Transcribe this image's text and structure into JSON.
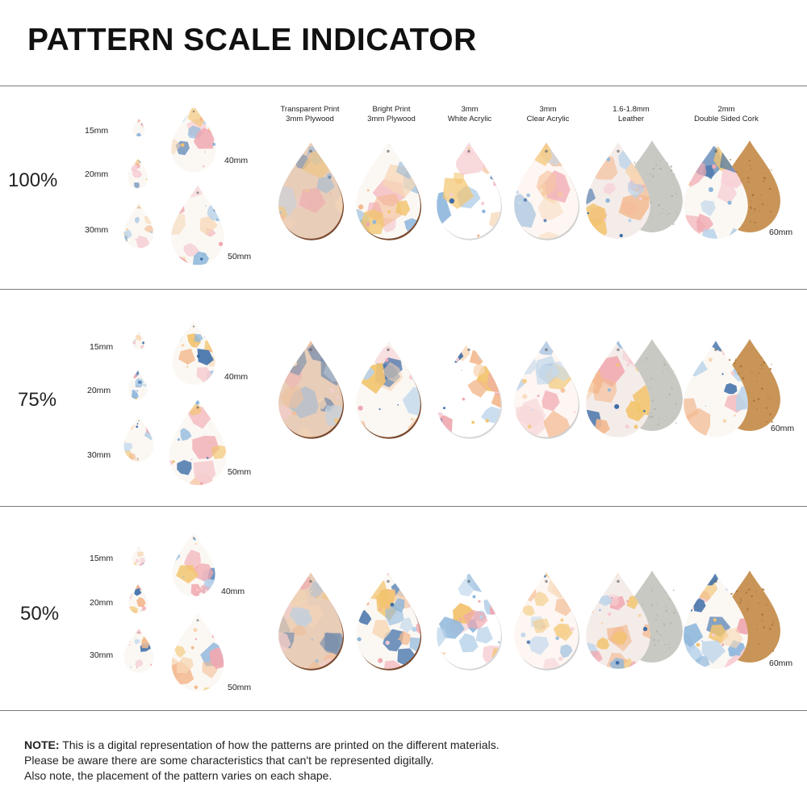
{
  "title": "PATTERN SCALE INDICATOR",
  "materials": [
    {
      "line1": "Transparent Print",
      "line2": "3mm Plywood"
    },
    {
      "line1": "Bright Print",
      "line2": "3mm Plywood"
    },
    {
      "line1": "3mm",
      "line2": "White Acrylic"
    },
    {
      "line1": "3mm",
      "line2": "Clear Acrylic"
    },
    {
      "line1": "1.6-1.8mm",
      "line2": "Leather"
    },
    {
      "line1": "2mm",
      "line2": "Double Sided Cork"
    }
  ],
  "sections": [
    {
      "scale": "100%",
      "sizes": [
        "15mm",
        "20mm",
        "30mm",
        "40mm",
        "50mm"
      ],
      "large_size": "60mm"
    },
    {
      "scale": "75%",
      "sizes": [
        "15mm",
        "20mm",
        "30mm",
        "40mm",
        "50mm"
      ],
      "large_size": "60mm"
    },
    {
      "scale": "50%",
      "sizes": [
        "15mm",
        "20mm",
        "30mm",
        "40mm",
        "50mm"
      ],
      "large_size": "60mm"
    }
  ],
  "note": {
    "label": "NOTE:",
    "line1": "This is a digital representation of how the patterns are printed on the different materials.",
    "line2": "Please be aware there are some characteristics that can't be represented digitally.",
    "line3": "Also note, the placement of the pattern varies on each shape."
  },
  "colors": {
    "blue": "#8fb7dc",
    "pink": "#f0a8b0",
    "peach": "#f3b98f",
    "yellow": "#f2c46e",
    "navy": "#3d6ea8",
    "wood_edge": "#7a4a2e",
    "leather_back": "#c9c9c4",
    "cork": "#c99457"
  }
}
